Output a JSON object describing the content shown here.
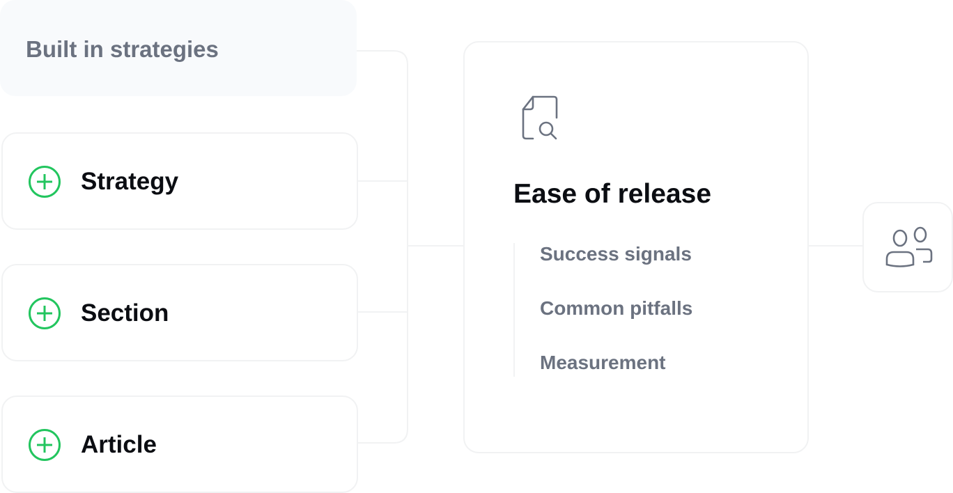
{
  "header": {
    "title": "Built in strategies"
  },
  "options": [
    {
      "label": "Strategy",
      "icon": "plus-circle-icon"
    },
    {
      "label": "Section",
      "icon": "plus-circle-icon"
    },
    {
      "label": "Article",
      "icon": "plus-circle-icon"
    }
  ],
  "main_card": {
    "icon": "document-search-icon",
    "title": "Ease of release",
    "items": [
      "Success signals",
      "Common pitfalls",
      "Measurement"
    ]
  },
  "target": {
    "icon": "users-icon"
  },
  "colors": {
    "accent": "#22c55e",
    "muted_text": "#6b7280",
    "text": "#0b0d12",
    "border": "#f1f2f3",
    "header_bg": "#f8fafc"
  }
}
